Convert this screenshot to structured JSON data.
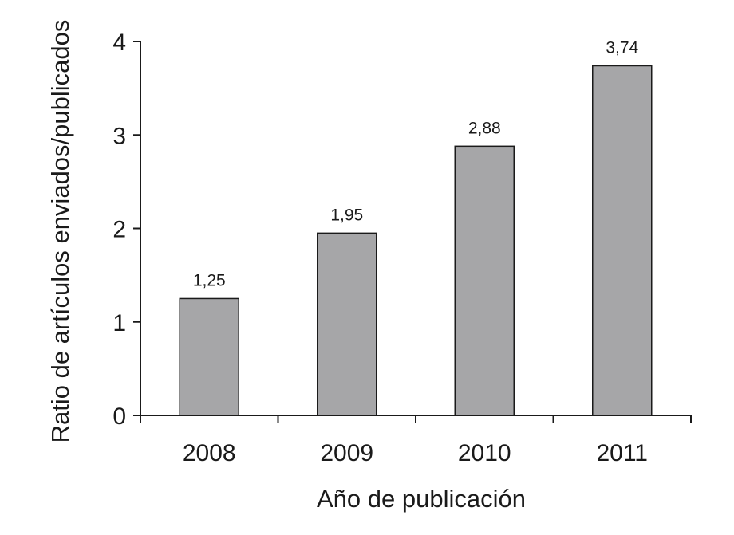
{
  "chart_data": {
    "type": "bar",
    "categories": [
      "2008",
      "2009",
      "2010",
      "2011"
    ],
    "values": [
      1.25,
      1.95,
      2.88,
      3.74
    ],
    "data_labels": [
      "1,25",
      "1,95",
      "2,88",
      "3,74"
    ],
    "xlabel": "Año de publicación",
    "ylabel": "Ratio de artículos enviados/publicados",
    "ylim": [
      0,
      4
    ],
    "yticks": [
      0,
      1,
      2,
      3,
      4
    ],
    "ytick_labels": [
      "0",
      "1",
      "2",
      "3",
      "4"
    ],
    "grid": false,
    "legend": "none"
  },
  "colors": {
    "bar_fill": "#a6a6a8",
    "bar_stroke": "#1a1a1a",
    "axis": "#1a1a1a"
  }
}
